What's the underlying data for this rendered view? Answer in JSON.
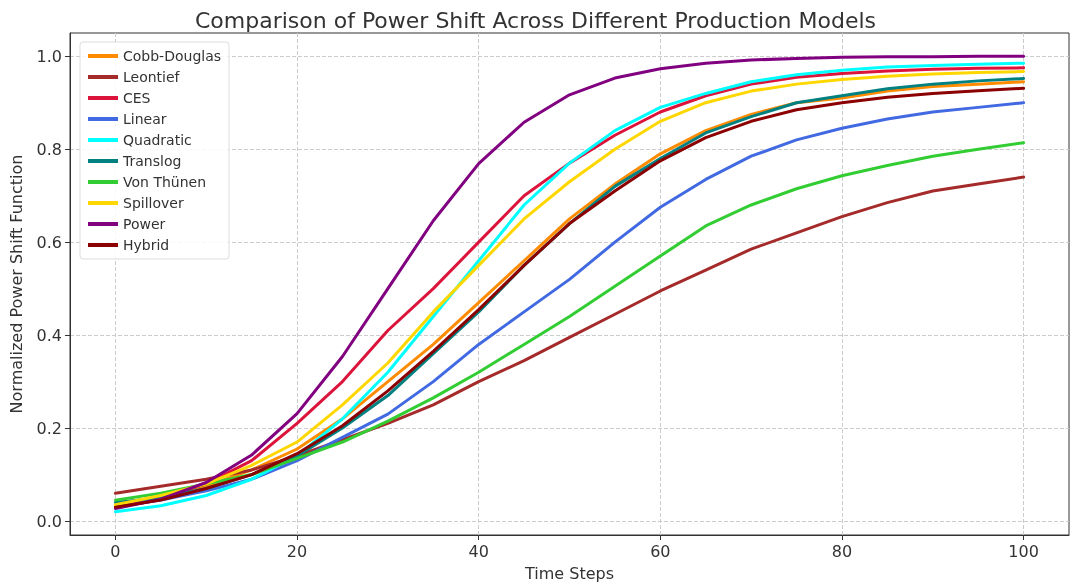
{
  "chart_data": {
    "type": "line",
    "title": "Comparison of Power Shift Across Different Production Models",
    "xlabel": "Time Steps",
    "ylabel": "Normalized Power Shift Function",
    "x": [
      0,
      5,
      10,
      15,
      20,
      25,
      30,
      35,
      40,
      45,
      50,
      55,
      60,
      65,
      70,
      75,
      80,
      85,
      90,
      95,
      100
    ],
    "series": [
      {
        "name": "Cobb-Douglas",
        "color": "#ff8c00",
        "values": [
          0.03,
          0.05,
          0.075,
          0.11,
          0.155,
          0.22,
          0.3,
          0.38,
          0.47,
          0.56,
          0.65,
          0.725,
          0.79,
          0.84,
          0.875,
          0.9,
          0.91,
          0.925,
          0.935,
          0.94,
          0.945
        ]
      },
      {
        "name": "Leontief",
        "color": "#a52a2a",
        "values": [
          0.06,
          0.075,
          0.09,
          0.11,
          0.14,
          0.175,
          0.21,
          0.25,
          0.3,
          0.345,
          0.395,
          0.445,
          0.495,
          0.54,
          0.585,
          0.62,
          0.655,
          0.685,
          0.71,
          0.725,
          0.74
        ]
      },
      {
        "name": "CES",
        "color": "#dc143c",
        "values": [
          0.03,
          0.05,
          0.08,
          0.13,
          0.21,
          0.3,
          0.41,
          0.5,
          0.6,
          0.7,
          0.77,
          0.83,
          0.88,
          0.915,
          0.94,
          0.955,
          0.963,
          0.968,
          0.972,
          0.974,
          0.975
        ]
      },
      {
        "name": "Linear",
        "color": "#4169e1",
        "values": [
          0.03,
          0.045,
          0.065,
          0.09,
          0.13,
          0.18,
          0.23,
          0.3,
          0.38,
          0.45,
          0.52,
          0.6,
          0.675,
          0.735,
          0.785,
          0.82,
          0.845,
          0.865,
          0.88,
          0.89,
          0.9
        ]
      },
      {
        "name": "Quadratic",
        "color": "#00ffff",
        "values": [
          0.02,
          0.033,
          0.055,
          0.09,
          0.14,
          0.22,
          0.32,
          0.44,
          0.56,
          0.68,
          0.77,
          0.84,
          0.89,
          0.92,
          0.945,
          0.96,
          0.97,
          0.977,
          0.98,
          0.983,
          0.985
        ]
      },
      {
        "name": "Translog",
        "color": "#008080",
        "values": [
          0.04,
          0.05,
          0.07,
          0.1,
          0.14,
          0.2,
          0.27,
          0.36,
          0.45,
          0.55,
          0.64,
          0.72,
          0.78,
          0.835,
          0.87,
          0.9,
          0.915,
          0.93,
          0.94,
          0.947,
          0.952
        ]
      },
      {
        "name": "Von Thünen",
        "color": "#32cd32",
        "values": [
          0.045,
          0.06,
          0.08,
          0.1,
          0.135,
          0.17,
          0.215,
          0.265,
          0.32,
          0.38,
          0.44,
          0.505,
          0.57,
          0.635,
          0.68,
          0.715,
          0.743,
          0.765,
          0.785,
          0.8,
          0.814
        ]
      },
      {
        "name": "Spillover",
        "color": "#ffd700",
        "values": [
          0.035,
          0.055,
          0.08,
          0.12,
          0.17,
          0.25,
          0.34,
          0.45,
          0.55,
          0.65,
          0.73,
          0.8,
          0.86,
          0.9,
          0.925,
          0.94,
          0.95,
          0.957,
          0.962,
          0.965,
          0.967
        ]
      },
      {
        "name": "Power",
        "color": "#800080",
        "values": [
          0.027,
          0.047,
          0.083,
          0.142,
          0.231,
          0.354,
          0.5,
          0.646,
          0.769,
          0.858,
          0.917,
          0.953,
          0.973,
          0.985,
          0.992,
          0.995,
          0.998,
          0.999,
          0.999,
          1.0,
          1.0
        ]
      },
      {
        "name": "Hybrid",
        "color": "#8b0000",
        "values": [
          0.03,
          0.045,
          0.07,
          0.1,
          0.145,
          0.205,
          0.28,
          0.365,
          0.455,
          0.55,
          0.64,
          0.71,
          0.775,
          0.825,
          0.86,
          0.885,
          0.9,
          0.912,
          0.92,
          0.926,
          0.931
        ]
      }
    ],
    "xlim": [
      -5,
      105
    ],
    "xticks": [
      0,
      20,
      40,
      60,
      80,
      100
    ],
    "ylim": [
      -0.03,
      1.05
    ],
    "yticks": [
      {
        "value": 0,
        "label": "0.0"
      },
      {
        "value": 0.2,
        "label": "0.2"
      },
      {
        "value": 0.4,
        "label": "0.4"
      },
      {
        "value": 0.6,
        "label": "0.6"
      },
      {
        "value": 0.8,
        "label": "0.8"
      },
      {
        "value": 1,
        "label": "1.0"
      }
    ],
    "grid": true,
    "legend": "top left",
    "marker": "none",
    "line_style": "solid"
  }
}
